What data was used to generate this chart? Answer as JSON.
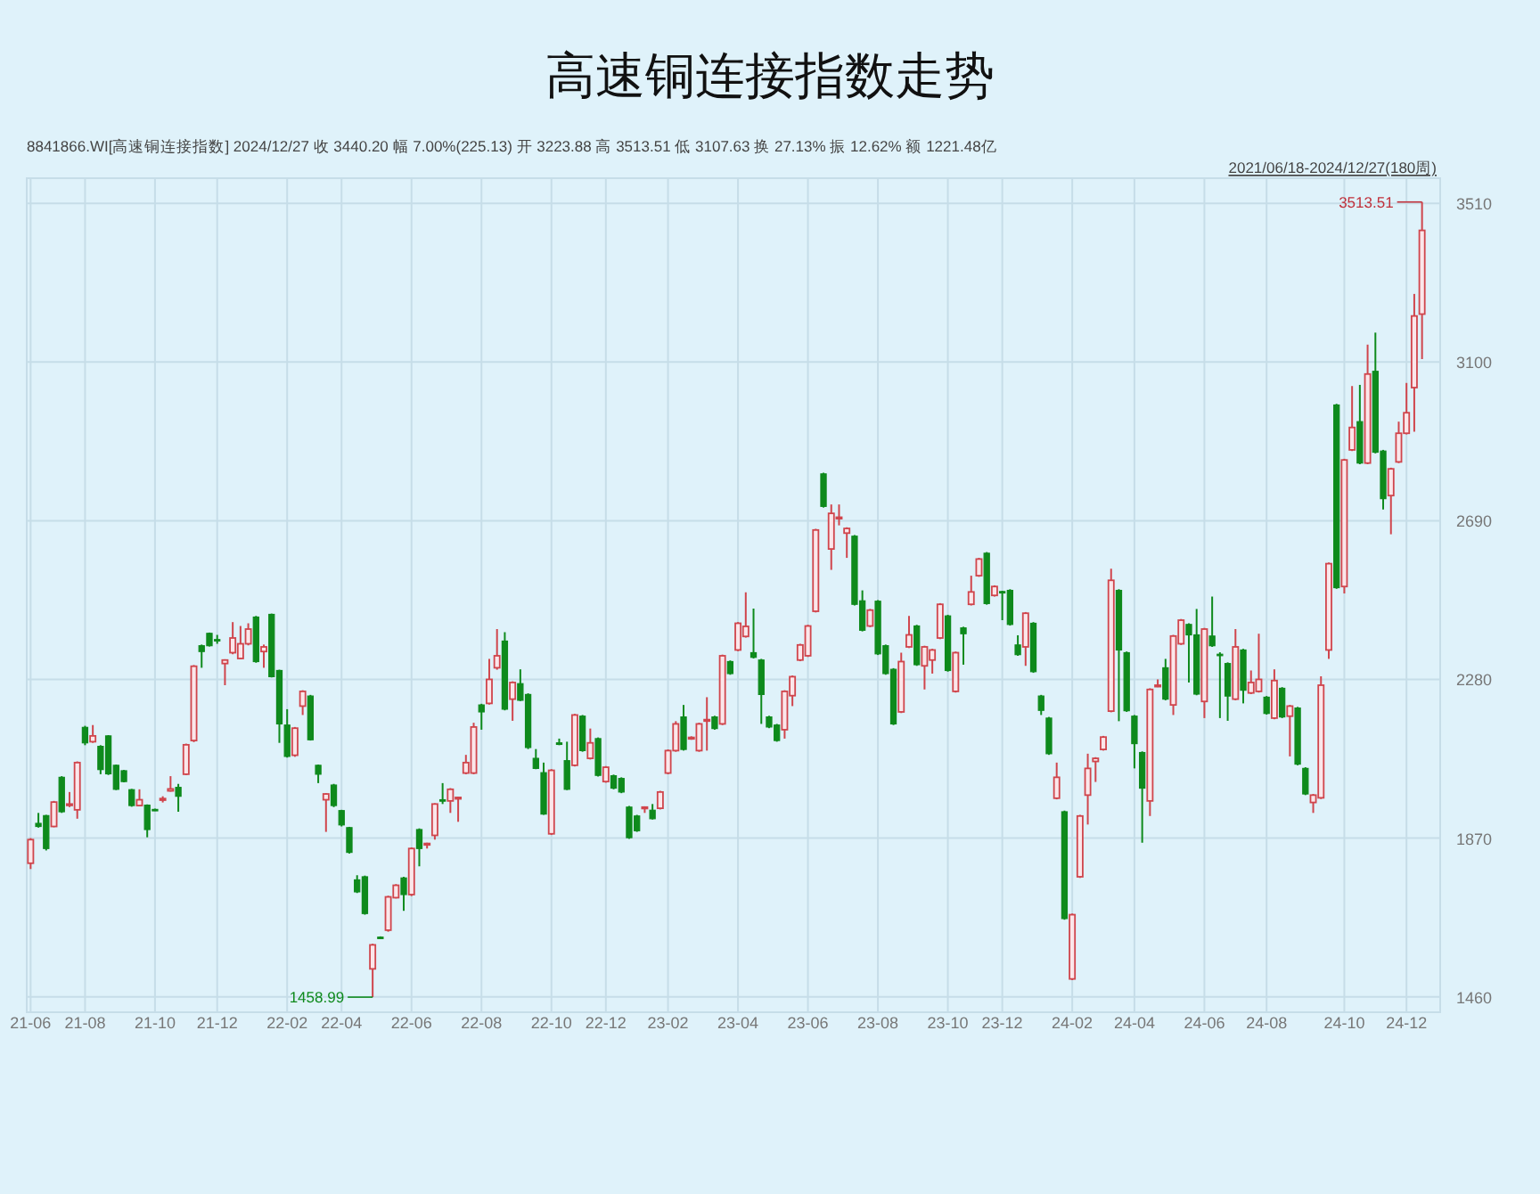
{
  "chart_data": {
    "type": "candlestick",
    "title": "高速铜连接指数走势",
    "annotations": [
      "8841866.WI[高速铜连接指数]   2024/12/27   收 3440.20   幅 7.00%(225.13)   开 3223.88   高 3513.51   低 3107.63   换 27.13%   振 12.62%   额 1221.48亿",
      "2021/06/18-2024/12/27(180周)",
      "3513.51",
      "1458.99"
    ],
    "categories": [
      "21-06",
      null,
      null,
      null,
      null,
      null,
      null,
      "21-08",
      null,
      null,
      null,
      null,
      null,
      null,
      null,
      null,
      "21-10",
      null,
      null,
      null,
      null,
      null,
      null,
      null,
      "21-12",
      null,
      null,
      null,
      null,
      null,
      null,
      null,
      null,
      "22-02",
      null,
      null,
      null,
      null,
      null,
      null,
      "22-04",
      null,
      null,
      null,
      null,
      null,
      null,
      null,
      null,
      "22-06",
      null,
      null,
      null,
      null,
      null,
      null,
      null,
      null,
      "22-08",
      null,
      null,
      null,
      null,
      null,
      null,
      null,
      null,
      "22-10",
      null,
      null,
      null,
      null,
      null,
      null,
      "22-12",
      null,
      null,
      null,
      null,
      null,
      null,
      null,
      "23-02",
      null,
      null,
      null,
      null,
      null,
      null,
      null,
      null,
      "23-04",
      null,
      null,
      null,
      null,
      null,
      null,
      null,
      null,
      "23-06",
      null,
      null,
      null,
      null,
      null,
      null,
      null,
      null,
      "23-08",
      null,
      null,
      null,
      null,
      null,
      null,
      null,
      null,
      "23-10",
      null,
      null,
      null,
      null,
      null,
      null,
      "23-12",
      null,
      null,
      null,
      null,
      null,
      null,
      null,
      null,
      "24-02",
      null,
      null,
      null,
      null,
      null,
      null,
      null,
      "24-04",
      null,
      null,
      null,
      null,
      null,
      null,
      null,
      null,
      "24-06",
      null,
      null,
      null,
      null,
      null,
      null,
      null,
      "24-08",
      null,
      null,
      null,
      null,
      null,
      null,
      null,
      null,
      null,
      "24-10",
      null,
      null,
      null,
      null,
      null,
      null,
      null,
      "24-12",
      null,
      null
    ],
    "ohlc": [
      [
        1805,
        1870,
        1790,
        1866
      ],
      [
        1908,
        1935,
        1897,
        1900
      ],
      [
        1928,
        1930,
        1838,
        1843
      ],
      [
        1900,
        1966,
        1898,
        1963
      ],
      [
        2027,
        2030,
        1935,
        1938
      ],
      [
        1955,
        1989,
        1950,
        1958
      ],
      [
        1943,
        2068,
        1920,
        2065
      ],
      [
        2156,
        2160,
        2110,
        2116
      ],
      [
        2119,
        2162,
        2116,
        2134
      ],
      [
        2107,
        2110,
        2035,
        2047
      ],
      [
        2134,
        2136,
        2033,
        2036
      ],
      [
        2058,
        2060,
        1994,
        1996
      ],
      [
        2044,
        2046,
        2014,
        2016
      ],
      [
        1995,
        1997,
        1951,
        1954
      ],
      [
        1954,
        1996,
        1952,
        1969
      ],
      [
        1955,
        1957,
        1872,
        1892
      ],
      [
        1944,
        1946,
        1940,
        1942
      ],
      [
        1968,
        1978,
        1962,
        1972
      ],
      [
        1992,
        2030,
        1990,
        1997
      ],
      [
        2001,
        2010,
        1938,
        1978
      ],
      [
        2035,
        2114,
        2033,
        2111
      ],
      [
        2122,
        2317,
        2118,
        2314
      ],
      [
        2367,
        2370,
        2310,
        2352
      ],
      [
        2399,
        2401,
        2365,
        2367
      ],
      [
        2383,
        2395,
        2372,
        2382
      ],
      [
        2321,
        2332,
        2265,
        2330
      ],
      [
        2349,
        2428,
        2345,
        2387
      ],
      [
        2334,
        2418,
        2332,
        2372
      ],
      [
        2372,
        2425,
        2368,
        2410
      ],
      [
        2441,
        2444,
        2323,
        2326
      ],
      [
        2352,
        2370,
        2310,
        2364
      ],
      [
        2448,
        2450,
        2285,
        2287
      ],
      [
        2303,
        2305,
        2116,
        2165
      ],
      [
        2162,
        2203,
        2078,
        2081
      ],
      [
        2084,
        2157,
        2080,
        2154
      ],
      [
        2211,
        2252,
        2188,
        2249
      ],
      [
        2237,
        2240,
        2122,
        2124
      ],
      [
        2058,
        2060,
        2012,
        2035
      ],
      [
        1969,
        1986,
        1886,
        1984
      ],
      [
        2007,
        2010,
        1950,
        1954
      ],
      [
        1941,
        1943,
        1900,
        1904
      ],
      [
        1897,
        1899,
        1830,
        1833
      ],
      [
        1762,
        1774,
        1728,
        1731
      ],
      [
        1770,
        1773,
        1672,
        1675
      ],
      [
        1532,
        1597,
        1458.99,
        1594
      ],
      [
        1614,
        1616,
        1610,
        1612
      ],
      [
        1632,
        1721,
        1628,
        1718
      ],
      [
        1716,
        1751,
        1714,
        1748
      ],
      [
        1767,
        1770,
        1682,
        1724
      ],
      [
        1724,
        1846,
        1720,
        1843
      ],
      [
        1892,
        1895,
        1797,
        1843
      ],
      [
        1853,
        1858,
        1843,
        1856
      ],
      [
        1877,
        1960,
        1866,
        1958
      ],
      [
        1969,
        2012,
        1958,
        1968
      ],
      [
        1966,
        1999,
        1935,
        1996
      ],
      [
        1973,
        1977,
        1912,
        1975
      ],
      [
        2038,
        2085,
        2035,
        2065
      ],
      [
        2038,
        2168,
        2035,
        2157
      ],
      [
        2214,
        2217,
        2150,
        2196
      ],
      [
        2218,
        2333,
        2215,
        2280
      ],
      [
        2310,
        2410,
        2305,
        2341
      ],
      [
        2379,
        2402,
        2200,
        2203
      ],
      [
        2229,
        2275,
        2173,
        2272
      ],
      [
        2269,
        2306,
        2224,
        2226
      ],
      [
        2241,
        2244,
        2100,
        2104
      ],
      [
        2076,
        2100,
        2048,
        2050
      ],
      [
        2039,
        2065,
        1930,
        1932
      ],
      [
        1881,
        2048,
        1878,
        2045
      ],
      [
        2116,
        2127,
        2110,
        2112
      ],
      [
        2070,
        2119,
        1994,
        1996
      ],
      [
        2058,
        2191,
        2055,
        2188
      ],
      [
        2185,
        2188,
        2093,
        2096
      ],
      [
        2076,
        2153,
        2073,
        2116
      ],
      [
        2127,
        2130,
        2029,
        2032
      ],
      [
        2016,
        2056,
        2013,
        2053
      ],
      [
        2031,
        2034,
        1996,
        1999
      ],
      [
        2024,
        2027,
        1986,
        1989
      ],
      [
        1950,
        1953,
        1868,
        1871
      ],
      [
        1927,
        1930,
        1886,
        1889
      ],
      [
        1947,
        1952,
        1935,
        1950
      ],
      [
        1942,
        1958,
        1918,
        1920
      ],
      [
        1947,
        1992,
        1944,
        1989
      ],
      [
        2038,
        2099,
        2035,
        2096
      ],
      [
        2096,
        2172,
        2093,
        2165
      ],
      [
        2183,
        2214,
        2096,
        2099
      ],
      [
        2127,
        2133,
        2124,
        2130
      ],
      [
        2096,
        2168,
        2093,
        2165
      ],
      [
        2175,
        2234,
        2096,
        2176
      ],
      [
        2183,
        2186,
        2150,
        2153
      ],
      [
        2165,
        2344,
        2162,
        2341
      ],
      [
        2326,
        2329,
        2292,
        2295
      ],
      [
        2356,
        2428,
        2353,
        2425
      ],
      [
        2391,
        2505,
        2388,
        2417
      ],
      [
        2349,
        2463,
        2334,
        2337
      ],
      [
        2330,
        2333,
        2165,
        2241
      ],
      [
        2183,
        2186,
        2154,
        2157
      ],
      [
        2162,
        2165,
        2119,
        2122
      ],
      [
        2150,
        2252,
        2127,
        2249
      ],
      [
        2238,
        2290,
        2211,
        2287
      ],
      [
        2330,
        2372,
        2327,
        2369
      ],
      [
        2341,
        2421,
        2338,
        2418
      ],
      [
        2456,
        2669,
        2453,
        2666
      ],
      [
        2811,
        2814,
        2724,
        2727
      ],
      [
        2617,
        2732,
        2563,
        2709
      ],
      [
        2696,
        2732,
        2678,
        2699
      ],
      [
        2658,
        2673,
        2594,
        2670
      ],
      [
        2650,
        2653,
        2471,
        2474
      ],
      [
        2483,
        2510,
        2404,
        2407
      ],
      [
        2418,
        2462,
        2415,
        2459
      ],
      [
        2482,
        2485,
        2343,
        2346
      ],
      [
        2367,
        2370,
        2292,
        2295
      ],
      [
        2306,
        2309,
        2162,
        2165
      ],
      [
        2196,
        2349,
        2193,
        2326
      ],
      [
        2364,
        2444,
        2361,
        2395
      ],
      [
        2418,
        2421,
        2315,
        2318
      ],
      [
        2315,
        2367,
        2254,
        2364
      ],
      [
        2330,
        2359,
        2295,
        2356
      ],
      [
        2387,
        2477,
        2384,
        2474
      ],
      [
        2444,
        2447,
        2300,
        2303
      ],
      [
        2249,
        2352,
        2246,
        2349
      ],
      [
        2413,
        2416,
        2318,
        2398
      ],
      [
        2474,
        2548,
        2471,
        2506
      ],
      [
        2548,
        2594,
        2545,
        2591
      ],
      [
        2606,
        2609,
        2473,
        2476
      ],
      [
        2497,
        2523,
        2494,
        2520
      ],
      [
        2507,
        2509,
        2433,
        2505
      ],
      [
        2510,
        2513,
        2419,
        2422
      ],
      [
        2369,
        2394,
        2341,
        2344
      ],
      [
        2364,
        2454,
        2315,
        2451
      ],
      [
        2425,
        2428,
        2297,
        2300
      ],
      [
        2237,
        2240,
        2188,
        2200
      ],
      [
        2180,
        2183,
        2085,
        2088
      ],
      [
        1973,
        2065,
        1970,
        2027
      ],
      [
        1938,
        1941,
        1659,
        1662
      ],
      [
        1506,
        1675,
        1503,
        1672
      ],
      [
        1770,
        1930,
        1767,
        1927
      ],
      [
        1981,
        2088,
        1905,
        2050
      ],
      [
        2068,
        2079,
        2015,
        2076
      ],
      [
        2099,
        2134,
        2096,
        2131
      ],
      [
        2198,
        2566,
        2195,
        2536
      ],
      [
        2510,
        2513,
        2172,
        2356
      ],
      [
        2349,
        2352,
        2196,
        2199
      ],
      [
        2185,
        2188,
        2050,
        2114
      ],
      [
        2091,
        2094,
        1858,
        1999
      ],
      [
        1966,
        2257,
        1927,
        2254
      ],
      [
        2262,
        2280,
        2260,
        2265
      ],
      [
        2310,
        2333,
        2226,
        2229
      ],
      [
        2214,
        2395,
        2188,
        2392
      ],
      [
        2372,
        2436,
        2369,
        2433
      ],
      [
        2422,
        2425,
        2272,
        2395
      ],
      [
        2395,
        2462,
        2239,
        2242
      ],
      [
        2223,
        2413,
        2180,
        2410
      ],
      [
        2392,
        2494,
        2364,
        2367
      ],
      [
        2345,
        2350,
        2180,
        2344
      ],
      [
        2321,
        2324,
        2173,
        2237
      ],
      [
        2229,
        2410,
        2226,
        2364
      ],
      [
        2356,
        2359,
        2218,
        2252
      ],
      [
        2245,
        2303,
        2242,
        2272
      ],
      [
        2249,
        2398,
        2246,
        2280
      ],
      [
        2234,
        2237,
        2189,
        2192
      ],
      [
        2180,
        2306,
        2177,
        2277
      ],
      [
        2257,
        2260,
        2180,
        2183
      ],
      [
        2185,
        2214,
        2081,
        2211
      ],
      [
        2206,
        2209,
        2058,
        2061
      ],
      [
        2050,
        2053,
        1981,
        1984
      ],
      [
        1962,
        1984,
        1935,
        1981
      ],
      [
        1974,
        2288,
        1971,
        2265
      ],
      [
        2356,
        2582,
        2333,
        2579
      ],
      [
        2989,
        2992,
        2514,
        2517
      ],
      [
        2520,
        2850,
        2502,
        2847
      ],
      [
        2873,
        3038,
        2870,
        2931
      ],
      [
        2946,
        3041,
        2836,
        2839
      ],
      [
        2839,
        3145,
        2836,
        3069
      ],
      [
        3076,
        3176,
        2864,
        2867
      ],
      [
        2870,
        2873,
        2719,
        2747
      ],
      [
        2755,
        2827,
        2655,
        2824
      ],
      [
        2842,
        2946,
        2839,
        2916
      ],
      [
        2916,
        3046,
        2913,
        2969
      ],
      [
        3034,
        3276,
        2920,
        3219
      ],
      [
        3223.88,
        3513.51,
        3107.63,
        3440.2
      ]
    ],
    "ylim": [
      1420,
      3575
    ],
    "yticks": [
      1460,
      1870,
      2280,
      2690,
      3100,
      3510
    ],
    "grid": true
  }
}
